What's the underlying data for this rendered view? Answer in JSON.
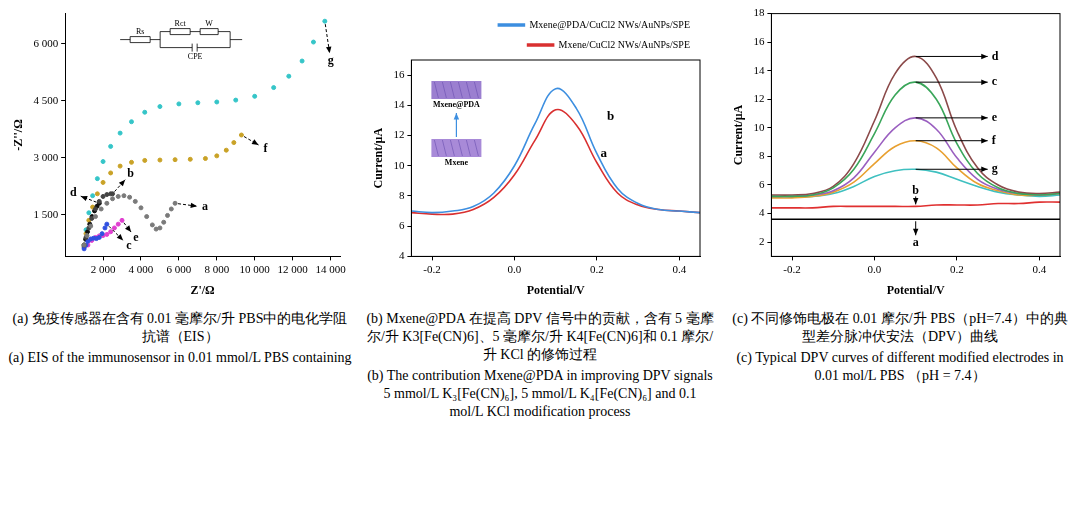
{
  "chart_data": [
    {
      "type": "scatter",
      "x_label": "Z'/Ω",
      "y_label": "-Z''/Ω",
      "xlim": [
        0,
        14500
      ],
      "ylim": [
        400,
        6800
      ],
      "xticks": [
        {
          "value": 2000,
          "label": "2 000"
        },
        {
          "value": 4000,
          "label": "4 000"
        },
        {
          "value": 6000,
          "label": "6 000"
        },
        {
          "value": 8000,
          "label": "8 000"
        },
        {
          "value": 10000,
          "label": "10 000"
        },
        {
          "value": 12000,
          "label": "12 000"
        },
        {
          "value": 14000,
          "label": "14 000"
        }
      ],
      "yticks": [
        {
          "value": 1500,
          "label": "1 500"
        },
        {
          "value": 3000,
          "label": "3 000"
        },
        {
          "value": 4500,
          "label": "4 500"
        },
        {
          "value": 6000,
          "label": "6 000"
        }
      ],
      "grid": false,
      "inset_labels": [
        "Rs",
        "Rct",
        "W",
        "CPE"
      ],
      "series": [
        {
          "name": "a",
          "color": "#7a7a7a",
          "marker": "circle",
          "x": [
            1000,
            1150,
            1350,
            1600,
            1900,
            2200,
            2500,
            2800,
            3100,
            3400,
            3700,
            4000,
            4300,
            4600,
            4800,
            5000,
            5200,
            5400,
            5600,
            5800
          ],
          "values": [
            700,
            950,
            1200,
            1450,
            1650,
            1800,
            1920,
            1980,
            2000,
            1960,
            1850,
            1680,
            1450,
            1230,
            1120,
            1150,
            1300,
            1480,
            1650,
            1800
          ]
        },
        {
          "name": "b",
          "color": "#444444",
          "marker": "circle",
          "x": [
            1000,
            1100,
            1250,
            1400,
            1600,
            1800,
            2000,
            2200,
            2400,
            2500
          ],
          "values": [
            700,
            900,
            1150,
            1400,
            1650,
            1850,
            1980,
            2030,
            2050,
            2050
          ]
        },
        {
          "name": "c",
          "color": "#3050e0",
          "marker": "circle",
          "x": [
            1000,
            1100,
            1200,
            1350,
            1500,
            1650,
            1800,
            1950,
            2100,
            2200
          ],
          "values": [
            600,
            700,
            800,
            860,
            880,
            870,
            900,
            1000,
            1150,
            1250
          ]
        },
        {
          "name": "d",
          "color": "#111111",
          "marker": "circle",
          "x": [
            1000,
            1080,
            1180,
            1300,
            1420,
            1550,
            1680,
            1800
          ],
          "values": [
            650,
            850,
            1050,
            1250,
            1450,
            1600,
            1720,
            1800
          ]
        },
        {
          "name": "e",
          "color": "#e040d0",
          "marker": "circle",
          "x": [
            1200,
            1400,
            1600,
            1800,
            2000,
            2200,
            2400,
            2600,
            2800,
            3000
          ],
          "values": [
            700,
            820,
            900,
            940,
            950,
            980,
            1050,
            1150,
            1250,
            1350
          ]
        },
        {
          "name": "f",
          "color": "#c9a227",
          "marker": "circle",
          "x": [
            1000,
            1100,
            1250,
            1450,
            1700,
            2000,
            2400,
            2900,
            3500,
            4200,
            5000,
            5800,
            6600,
            7400,
            8000,
            8500,
            8900,
            9300
          ],
          "values": [
            700,
            1000,
            1350,
            1700,
            2050,
            2350,
            2600,
            2780,
            2880,
            2930,
            2940,
            2950,
            2960,
            2980,
            3050,
            3200,
            3400,
            3600
          ]
        },
        {
          "name": "g",
          "color": "#35c5c8",
          "marker": "circle",
          "x": [
            1000,
            1100,
            1250,
            1450,
            1700,
            2000,
            2400,
            2900,
            3500,
            4200,
            5000,
            6000,
            7000,
            8000,
            9000,
            10000,
            11000,
            11800,
            12500,
            13100,
            13700
          ],
          "values": [
            700,
            1100,
            1550,
            2000,
            2450,
            2900,
            3300,
            3650,
            3950,
            4200,
            4350,
            4420,
            4450,
            4470,
            4520,
            4620,
            4850,
            5150,
            5550,
            6050,
            6600
          ]
        }
      ],
      "caption": [
        "(a) 免疫传感器在含有 0.01 毫摩尔/升 PBS中的电化学阻抗谱（EIS）",
        "(a) EIS of the immunosensor in 0.01 mmol/L PBS containing"
      ]
    },
    {
      "type": "line",
      "x_label": "Potential/V",
      "y_label": "Current/μA",
      "xlim": [
        -0.25,
        0.45
      ],
      "ylim": [
        4,
        17
      ],
      "xticks": [
        -0.2,
        {
          "value": 0,
          "label": "0.0"
        },
        0.2,
        0.4
      ],
      "yticks": [
        4,
        6,
        8,
        10,
        12,
        14,
        16
      ],
      "grid": false,
      "legend": "top",
      "inset_labels": [
        "Mxene@PDA",
        "Mxene"
      ],
      "x": [
        -0.25,
        -0.2,
        -0.15,
        -0.1,
        -0.05,
        0,
        0.05,
        0.1,
        0.15,
        0.2,
        0.25,
        0.3,
        0.35,
        0.4,
        0.45
      ],
      "series": [
        {
          "name": "Mxene@PDA/CuCl2 NWs/AuNPs/SPE",
          "annotation": "b",
          "color": "#3d8fe0",
          "marker": "none",
          "values": [
            7.0,
            6.9,
            7.0,
            7.3,
            8.2,
            10.0,
            12.8,
            15.1,
            13.8,
            10.8,
            8.5,
            7.5,
            7.1,
            7.0,
            6.9
          ]
        },
        {
          "name": "Mxene/CuCl2 NWs/AuNPs/SPE",
          "annotation": "a",
          "color": "#d93030",
          "marker": "none",
          "values": [
            6.9,
            6.8,
            6.8,
            7.1,
            7.9,
            9.4,
            11.7,
            13.7,
            12.7,
            10.2,
            8.2,
            7.4,
            7.1,
            7.0,
            6.9
          ]
        }
      ],
      "caption": [
        "(b) Mxene@PDA 在提高 DPV 信号中的贡献，含有 5 毫摩尔/升 K3[Fe(CN)6]、5 毫摩尔/升 K4[Fe(CN)6]和 0.1 摩尔/升 KCl 的修饰过程",
        "(b) The contribution Mxene@PDA in improving DPV signals 5 mmol/L K₃[Fe(CN)₆], 5 mmol/L K₄[Fe(CN)₆] and 0.1 mol/L KCl modification process"
      ]
    },
    {
      "type": "line",
      "x_label": "Potential/V",
      "y_label": "Current/μA",
      "xlim": [
        -0.25,
        0.45
      ],
      "ylim": [
        1,
        18
      ],
      "xticks": [
        -0.2,
        {
          "value": 0,
          "label": "0.0"
        },
        0.2,
        0.4
      ],
      "yticks": [
        2,
        4,
        6,
        8,
        10,
        12,
        14,
        16,
        18
      ],
      "grid": false,
      "x": [
        -0.25,
        -0.2,
        -0.15,
        -0.1,
        -0.05,
        0,
        0.05,
        0.1,
        0.15,
        0.2,
        0.25,
        0.3,
        0.35,
        0.4,
        0.45
      ],
      "series": [
        {
          "name": "a",
          "color": "#000000",
          "marker": "none",
          "values": [
            3.6,
            3.6,
            3.6,
            3.6,
            3.6,
            3.6,
            3.6,
            3.6,
            3.6,
            3.6,
            3.6,
            3.6,
            3.6,
            3.6,
            3.6
          ]
        },
        {
          "name": "b",
          "color": "#e03030",
          "marker": "none",
          "values": [
            4.4,
            4.4,
            4.4,
            4.5,
            4.5,
            4.5,
            4.5,
            4.5,
            4.6,
            4.6,
            4.6,
            4.7,
            4.7,
            4.8,
            4.8
          ]
        },
        {
          "name": "c",
          "color": "#3aa65a",
          "marker": "none",
          "values": [
            5.2,
            5.2,
            5.3,
            5.8,
            7.1,
            9.6,
            12.3,
            13.2,
            12.0,
            8.9,
            6.8,
            5.8,
            5.4,
            5.3,
            5.4
          ]
        },
        {
          "name": "d",
          "color": "#8b4a4a",
          "marker": "none",
          "values": [
            5.3,
            5.3,
            5.4,
            5.9,
            7.5,
            10.5,
            13.8,
            15.0,
            13.5,
            9.8,
            7.2,
            6.0,
            5.5,
            5.4,
            5.5
          ]
        },
        {
          "name": "e",
          "color": "#9a5fc0",
          "marker": "none",
          "values": [
            5.2,
            5.2,
            5.3,
            5.6,
            6.5,
            8.3,
            10.0,
            10.7,
            9.9,
            7.9,
            6.4,
            5.7,
            5.4,
            5.3,
            5.4
          ]
        },
        {
          "name": "f",
          "color": "#e8a030",
          "marker": "none",
          "values": [
            5.1,
            5.1,
            5.2,
            5.5,
            6.2,
            7.5,
            8.7,
            9.1,
            8.6,
            7.2,
            6.1,
            5.6,
            5.3,
            5.3,
            5.4
          ]
        },
        {
          "name": "g",
          "color": "#3fc0c0",
          "marker": "none",
          "values": [
            5.2,
            5.2,
            5.2,
            5.4,
            5.9,
            6.6,
            7.0,
            7.1,
            6.9,
            6.4,
            5.9,
            5.5,
            5.3,
            5.2,
            5.3
          ]
        }
      ],
      "caption": [
        "(c) 不同修饰电极在 0.01 摩尔/升 PBS（pH=7.4）中的典型差分脉冲伏安法（DPV）曲线",
        "(c) Typical DPV curves of different modified electrodes in 0.01 mol/L PBS （pH = 7.4）"
      ]
    }
  ]
}
